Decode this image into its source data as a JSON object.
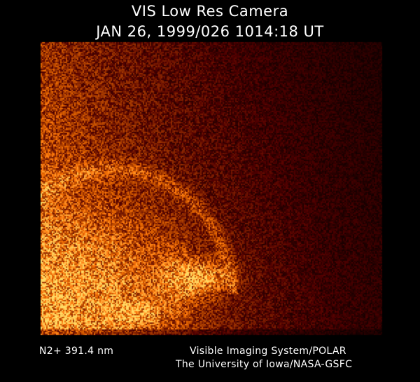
{
  "header": {
    "instrument": "VIS Low Res Camera",
    "timestamp": "JAN 26, 1999/026 1014:18 UT"
  },
  "image": {
    "subject": "auroral oval",
    "palette": [
      "#000000",
      "#5a1a00",
      "#b04a05",
      "#f08a20",
      "#ffc060"
    ]
  },
  "footer": {
    "filter": "N2+ 391.4 nm",
    "credit_line1": "Visible Imaging System/POLAR",
    "credit_line2": "The University of Iowa/NASA-GSFC"
  }
}
